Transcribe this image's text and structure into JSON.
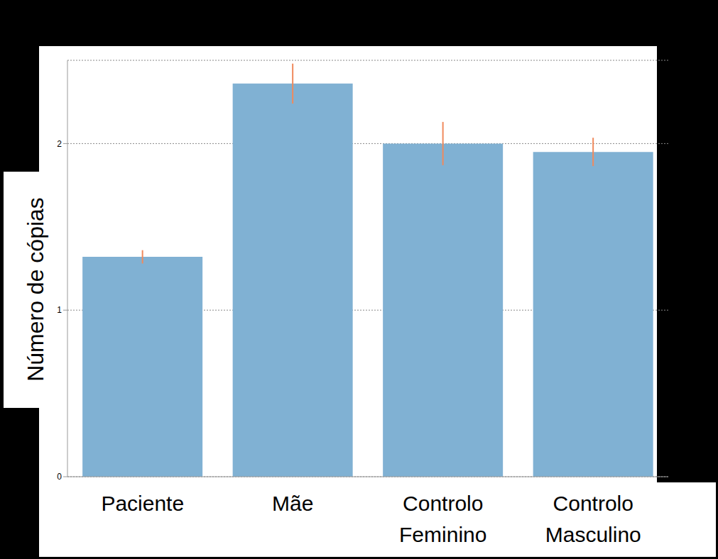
{
  "chart_data": {
    "type": "bar",
    "y_label": "Número de cópias",
    "categories": [
      "Paciente",
      "Mãe",
      "Controlo Feminino",
      "Controlo Masculino"
    ],
    "values": [
      1.32,
      2.36,
      2.0,
      1.95
    ],
    "errors": [
      0.04,
      0.12,
      0.13,
      0.085
    ],
    "color": "#80b1d3",
    "ylim": [
      0,
      2.5
    ],
    "yticks": [
      0,
      1,
      2
    ],
    "grid": true
  }
}
